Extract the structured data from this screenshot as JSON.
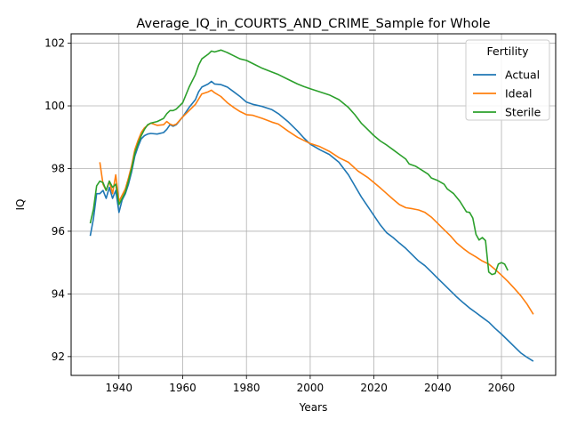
{
  "chart_data": {
    "type": "line",
    "title": "Average_IQ_in_COURTS_AND_CRIME_Sample for Whole",
    "xlabel": "Years",
    "ylabel": "IQ",
    "xlim": [
      1925,
      2077
    ],
    "ylim": [
      91.4,
      102.3
    ],
    "xticks": [
      1940,
      1960,
      1980,
      2000,
      2020,
      2040,
      2060
    ],
    "yticks": [
      92,
      94,
      96,
      98,
      100,
      102
    ],
    "grid": true,
    "legend": {
      "title": "Fertility",
      "placement": "top-right"
    },
    "series": [
      {
        "name": "Actual",
        "color": "#1f77b4",
        "points": [
          [
            1931,
            95.85
          ],
          [
            1932,
            96.4
          ],
          [
            1933,
            97.2
          ],
          [
            1934,
            97.2
          ],
          [
            1935,
            97.3
          ],
          [
            1936,
            97.05
          ],
          [
            1937,
            97.4
          ],
          [
            1938,
            97.05
          ],
          [
            1939,
            97.3
          ],
          [
            1940,
            96.6
          ],
          [
            1941,
            97.0
          ],
          [
            1942,
            97.2
          ],
          [
            1943,
            97.5
          ],
          [
            1944,
            97.9
          ],
          [
            1945,
            98.4
          ],
          [
            1946,
            98.7
          ],
          [
            1947,
            98.95
          ],
          [
            1948,
            99.05
          ],
          [
            1949,
            99.1
          ],
          [
            1950,
            99.12
          ],
          [
            1952,
            99.1
          ],
          [
            1954,
            99.15
          ],
          [
            1955,
            99.25
          ],
          [
            1956,
            99.4
          ],
          [
            1957,
            99.35
          ],
          [
            1958,
            99.4
          ],
          [
            1960,
            99.65
          ],
          [
            1962,
            99.95
          ],
          [
            1964,
            100.2
          ],
          [
            1965,
            100.45
          ],
          [
            1966,
            100.6
          ],
          [
            1968,
            100.7
          ],
          [
            1969,
            100.78
          ],
          [
            1970,
            100.7
          ],
          [
            1972,
            100.68
          ],
          [
            1974,
            100.6
          ],
          [
            1976,
            100.45
          ],
          [
            1978,
            100.3
          ],
          [
            1980,
            100.12
          ],
          [
            1982,
            100.05
          ],
          [
            1985,
            99.98
          ],
          [
            1988,
            99.88
          ],
          [
            1990,
            99.75
          ],
          [
            1993,
            99.5
          ],
          [
            1996,
            99.2
          ],
          [
            1998,
            98.98
          ],
          [
            2000,
            98.78
          ],
          [
            2003,
            98.6
          ],
          [
            2006,
            98.45
          ],
          [
            2009,
            98.2
          ],
          [
            2012,
            97.8
          ],
          [
            2014,
            97.45
          ],
          [
            2016,
            97.1
          ],
          [
            2018,
            96.8
          ],
          [
            2020,
            96.5
          ],
          [
            2022,
            96.2
          ],
          [
            2024,
            95.95
          ],
          [
            2026,
            95.8
          ],
          [
            2028,
            95.62
          ],
          [
            2030,
            95.45
          ],
          [
            2032,
            95.25
          ],
          [
            2034,
            95.05
          ],
          [
            2036,
            94.9
          ],
          [
            2038,
            94.7
          ],
          [
            2040,
            94.5
          ],
          [
            2042,
            94.3
          ],
          [
            2044,
            94.1
          ],
          [
            2046,
            93.9
          ],
          [
            2048,
            93.72
          ],
          [
            2050,
            93.55
          ],
          [
            2052,
            93.4
          ],
          [
            2054,
            93.25
          ],
          [
            2056,
            93.1
          ],
          [
            2058,
            92.9
          ],
          [
            2060,
            92.72
          ],
          [
            2062,
            92.52
          ],
          [
            2064,
            92.32
          ],
          [
            2066,
            92.12
          ],
          [
            2068,
            91.98
          ],
          [
            2070,
            91.85
          ]
        ]
      },
      {
        "name": "Ideal",
        "color": "#ff7f0e",
        "points": [
          [
            1934,
            98.2
          ],
          [
            1935,
            97.5
          ],
          [
            1936,
            97.3
          ],
          [
            1937,
            97.6
          ],
          [
            1938,
            97.2
          ],
          [
            1939,
            97.8
          ],
          [
            1940,
            96.95
          ],
          [
            1941,
            97.15
          ],
          [
            1942,
            97.35
          ],
          [
            1943,
            97.7
          ],
          [
            1944,
            98.1
          ],
          [
            1945,
            98.6
          ],
          [
            1946,
            98.9
          ],
          [
            1947,
            99.15
          ],
          [
            1948,
            99.3
          ],
          [
            1949,
            99.38
          ],
          [
            1950,
            99.45
          ],
          [
            1952,
            99.38
          ],
          [
            1954,
            99.4
          ],
          [
            1955,
            99.5
          ],
          [
            1956,
            99.42
          ],
          [
            1957,
            99.38
          ],
          [
            1958,
            99.42
          ],
          [
            1960,
            99.65
          ],
          [
            1962,
            99.85
          ],
          [
            1964,
            100.05
          ],
          [
            1966,
            100.38
          ],
          [
            1968,
            100.45
          ],
          [
            1969,
            100.5
          ],
          [
            1970,
            100.42
          ],
          [
            1972,
            100.3
          ],
          [
            1974,
            100.1
          ],
          [
            1976,
            99.95
          ],
          [
            1978,
            99.82
          ],
          [
            1980,
            99.72
          ],
          [
            1982,
            99.7
          ],
          [
            1985,
            99.6
          ],
          [
            1988,
            99.48
          ],
          [
            1990,
            99.42
          ],
          [
            1993,
            99.2
          ],
          [
            1996,
            99.0
          ],
          [
            1998,
            98.9
          ],
          [
            2000,
            98.8
          ],
          [
            2003,
            98.7
          ],
          [
            2006,
            98.55
          ],
          [
            2009,
            98.35
          ],
          [
            2012,
            98.2
          ],
          [
            2015,
            97.92
          ],
          [
            2018,
            97.72
          ],
          [
            2020,
            97.55
          ],
          [
            2022,
            97.38
          ],
          [
            2024,
            97.2
          ],
          [
            2026,
            97.02
          ],
          [
            2028,
            96.85
          ],
          [
            2030,
            96.75
          ],
          [
            2032,
            96.72
          ],
          [
            2034,
            96.68
          ],
          [
            2036,
            96.6
          ],
          [
            2038,
            96.45
          ],
          [
            2040,
            96.25
          ],
          [
            2042,
            96.05
          ],
          [
            2044,
            95.85
          ],
          [
            2046,
            95.62
          ],
          [
            2048,
            95.45
          ],
          [
            2050,
            95.3
          ],
          [
            2052,
            95.18
          ],
          [
            2054,
            95.05
          ],
          [
            2056,
            94.95
          ],
          [
            2058,
            94.78
          ],
          [
            2060,
            94.6
          ],
          [
            2062,
            94.4
          ],
          [
            2064,
            94.18
          ],
          [
            2066,
            93.95
          ],
          [
            2068,
            93.68
          ],
          [
            2070,
            93.35
          ]
        ]
      },
      {
        "name": "Sterile",
        "color": "#2ca02c",
        "points": [
          [
            1931,
            96.25
          ],
          [
            1932,
            96.7
          ],
          [
            1933,
            97.45
          ],
          [
            1934,
            97.6
          ],
          [
            1935,
            97.55
          ],
          [
            1936,
            97.3
          ],
          [
            1937,
            97.6
          ],
          [
            1938,
            97.4
          ],
          [
            1939,
            97.5
          ],
          [
            1940,
            96.85
          ],
          [
            1941,
            97.05
          ],
          [
            1942,
            97.25
          ],
          [
            1943,
            97.6
          ],
          [
            1944,
            98.0
          ],
          [
            1945,
            98.5
          ],
          [
            1946,
            98.8
          ],
          [
            1947,
            99.05
          ],
          [
            1948,
            99.25
          ],
          [
            1949,
            99.4
          ],
          [
            1950,
            99.45
          ],
          [
            1952,
            99.5
          ],
          [
            1954,
            99.6
          ],
          [
            1955,
            99.75
          ],
          [
            1956,
            99.85
          ],
          [
            1957,
            99.85
          ],
          [
            1958,
            99.9
          ],
          [
            1960,
            100.1
          ],
          [
            1962,
            100.6
          ],
          [
            1964,
            101.0
          ],
          [
            1965,
            101.3
          ],
          [
            1966,
            101.5
          ],
          [
            1968,
            101.65
          ],
          [
            1969,
            101.75
          ],
          [
            1970,
            101.72
          ],
          [
            1972,
            101.78
          ],
          [
            1974,
            101.7
          ],
          [
            1976,
            101.6
          ],
          [
            1978,
            101.5
          ],
          [
            1980,
            101.45
          ],
          [
            1982,
            101.35
          ],
          [
            1985,
            101.2
          ],
          [
            1988,
            101.08
          ],
          [
            1990,
            101.0
          ],
          [
            1993,
            100.85
          ],
          [
            1996,
            100.7
          ],
          [
            1998,
            100.62
          ],
          [
            2000,
            100.55
          ],
          [
            2003,
            100.45
          ],
          [
            2006,
            100.35
          ],
          [
            2009,
            100.2
          ],
          [
            2012,
            99.95
          ],
          [
            2014,
            99.72
          ],
          [
            2016,
            99.45
          ],
          [
            2018,
            99.25
          ],
          [
            2020,
            99.05
          ],
          [
            2022,
            98.88
          ],
          [
            2024,
            98.75
          ],
          [
            2026,
            98.6
          ],
          [
            2028,
            98.45
          ],
          [
            2030,
            98.3
          ],
          [
            2031,
            98.15
          ],
          [
            2033,
            98.08
          ],
          [
            2035,
            97.95
          ],
          [
            2037,
            97.82
          ],
          [
            2038,
            97.7
          ],
          [
            2040,
            97.62
          ],
          [
            2042,
            97.5
          ],
          [
            2043,
            97.35
          ],
          [
            2045,
            97.2
          ],
          [
            2047,
            96.95
          ],
          [
            2049,
            96.62
          ],
          [
            2050,
            96.6
          ],
          [
            2051,
            96.42
          ],
          [
            2052,
            95.9
          ],
          [
            2053,
            95.72
          ],
          [
            2054,
            95.8
          ],
          [
            2055,
            95.7
          ],
          [
            2056,
            94.7
          ],
          [
            2057,
            94.62
          ],
          [
            2058,
            94.65
          ],
          [
            2059,
            94.95
          ],
          [
            2060,
            95.0
          ],
          [
            2061,
            94.95
          ],
          [
            2062,
            94.75
          ]
        ]
      }
    ]
  }
}
